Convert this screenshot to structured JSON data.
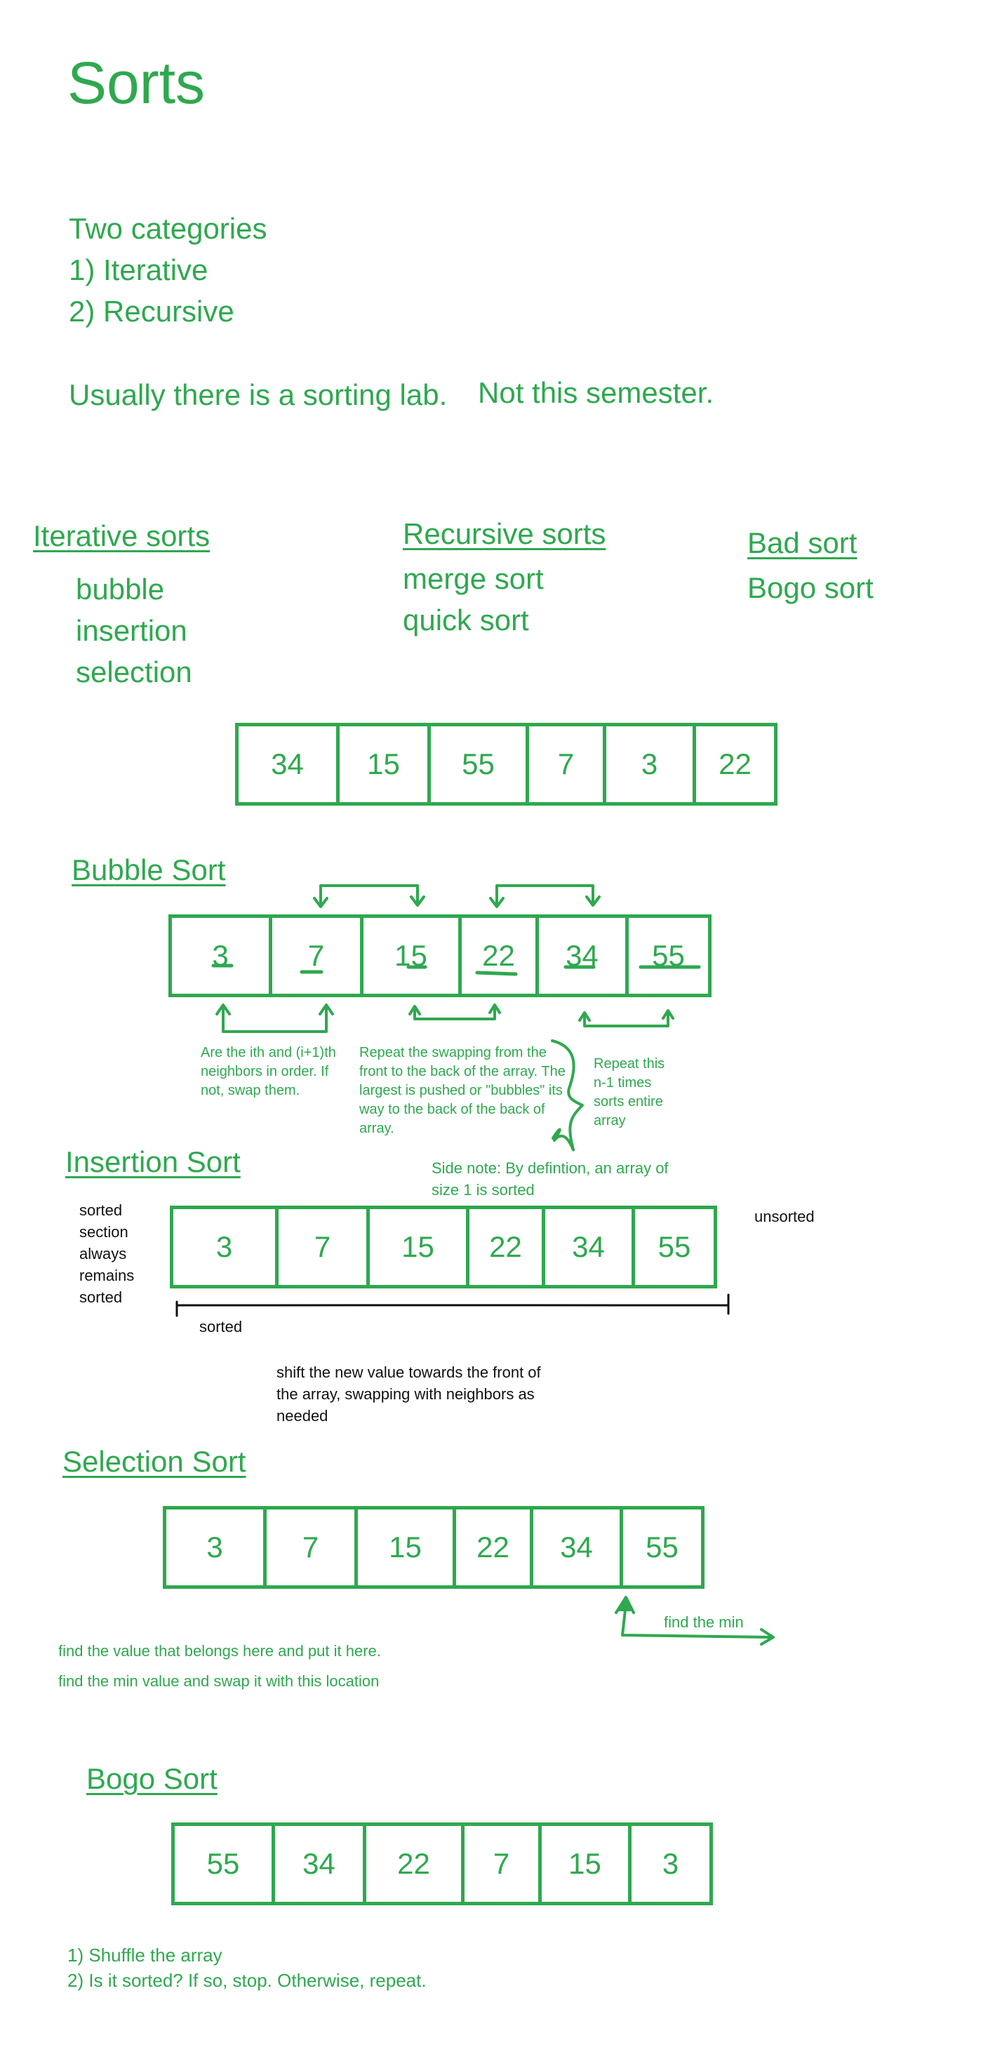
{
  "title": "Sorts",
  "intro": {
    "categories_heading": "Two categories",
    "categories": [
      "1) Iterative",
      "2) Recursive"
    ],
    "lab_note": "Usually there is a sorting lab.",
    "lab_note_2": "Not this semester."
  },
  "groups": {
    "iterative": {
      "heading": "Iterative sorts",
      "items": [
        "bubble",
        "insertion",
        "selection"
      ]
    },
    "recursive": {
      "heading": "Recursive sorts",
      "items": [
        "merge sort",
        "quick sort"
      ]
    },
    "bad": {
      "heading": "Bad sort",
      "items": [
        "Bogo sort"
      ]
    }
  },
  "example_array": [
    "34",
    "15",
    "55",
    "7",
    "3",
    "22"
  ],
  "bubble": {
    "heading": "Bubble Sort",
    "array": [
      "3",
      "7",
      "15",
      "22",
      "34",
      "55"
    ],
    "note_neighbors": "Are the ith and (i+1)th neighbors in order. If not, swap them.",
    "note_repeat": "Repeat the swapping from the front to the back of the array. The largest is pushed or \"bubbles\" its way to the back of the back of array.",
    "note_times": "Repeat this n-1 times sorts entire array"
  },
  "insertion": {
    "heading": "Insertion Sort",
    "side_note": "Side note: By defintion, an array of size 1 is sorted",
    "array": [
      "3",
      "7",
      "15",
      "22",
      "34",
      "55"
    ],
    "left_note": [
      "sorted",
      "section",
      "always",
      "remains",
      "sorted"
    ],
    "unsorted_label": "unsorted",
    "sorted_label": "sorted",
    "shift_note": "shift the new value towards the front of the array, swapping with neighbors as needed"
  },
  "selection": {
    "heading": "Selection Sort",
    "array": [
      "3",
      "7",
      "15",
      "22",
      "34",
      "55"
    ],
    "find_min": "find the min",
    "note1": "find the value that belongs here and put it here.",
    "note2": "find the min value and swap it with this location"
  },
  "bogo": {
    "heading": "Bogo Sort",
    "array": [
      "55",
      "34",
      "22",
      "7",
      "15",
      "3"
    ],
    "steps": [
      "1) Shuffle the array",
      "2) Is it sorted? If so, stop. Otherwise, repeat."
    ]
  }
}
